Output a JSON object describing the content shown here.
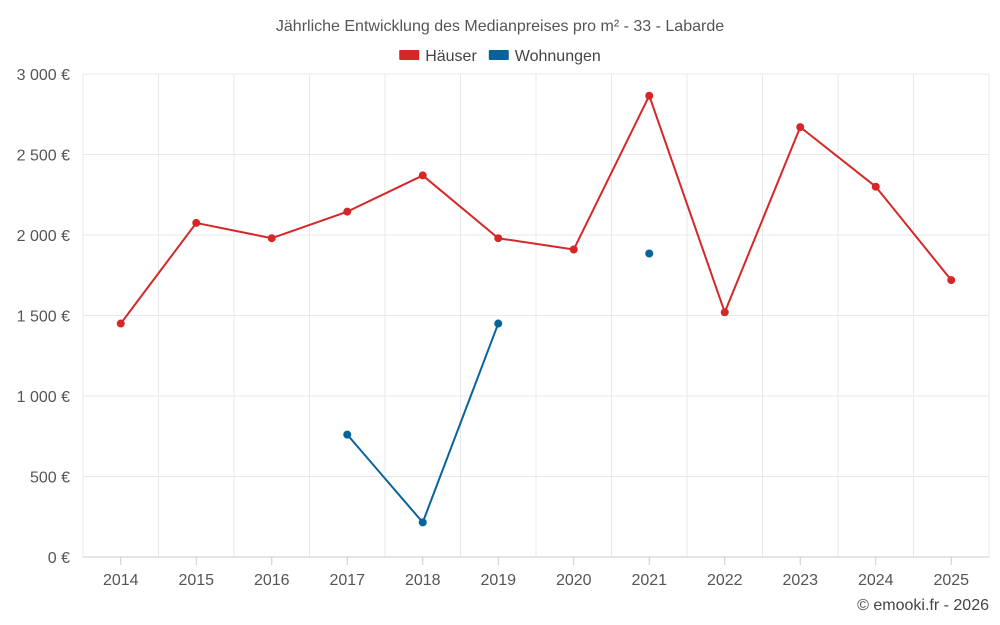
{
  "chart_data": {
    "type": "line",
    "title": "Jährliche Entwicklung des Medianpreises pro m² - 33 - Labarde",
    "categories": [
      "2014",
      "2015",
      "2016",
      "2017",
      "2018",
      "2019",
      "2020",
      "2021",
      "2022",
      "2023",
      "2024",
      "2025"
    ],
    "series": [
      {
        "name": "Häuser",
        "color": "#d62728",
        "values": [
          1450,
          2075,
          1980,
          2145,
          2370,
          1980,
          1910,
          2865,
          1520,
          2670,
          2300,
          1720
        ]
      },
      {
        "name": "Wohnungen",
        "color": "#08639a",
        "values": [
          null,
          null,
          null,
          760,
          215,
          1450,
          null,
          1885,
          null,
          null,
          null,
          null
        ]
      }
    ],
    "y_ticks": [
      0,
      500,
      1000,
      1500,
      2000,
      2500,
      3000
    ],
    "y_tick_labels": [
      "0 €",
      "500 €",
      "1 000 €",
      "1 500 €",
      "2 000 €",
      "2 500 €",
      "3 000 €"
    ],
    "ylim": [
      0,
      3000
    ],
    "xlabel": "",
    "ylabel": "",
    "grid": true,
    "legend_position": "top-center"
  },
  "credit": "© emooki.fr - 2026"
}
